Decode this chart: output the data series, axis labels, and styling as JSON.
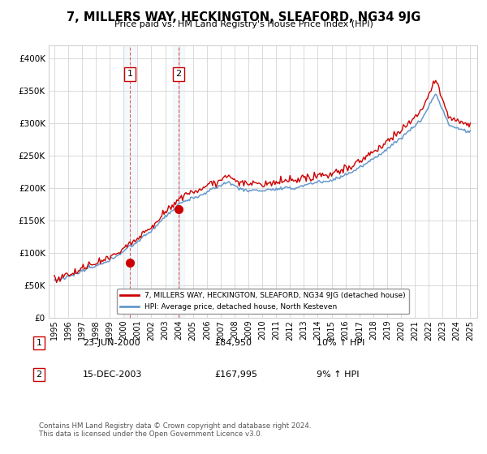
{
  "title": "7, MILLERS WAY, HECKINGTON, SLEAFORD, NG34 9JG",
  "subtitle": "Price paid vs. HM Land Registry's House Price Index (HPI)",
  "ylim": [
    0,
    420000
  ],
  "yticks": [
    0,
    50000,
    100000,
    150000,
    200000,
    250000,
    300000,
    350000,
    400000
  ],
  "ytick_labels": [
    "£0",
    "£50K",
    "£100K",
    "£150K",
    "£200K",
    "£250K",
    "£300K",
    "£350K",
    "£400K"
  ],
  "purchase_date_floats": [
    2000.47,
    2003.96
  ],
  "purchase_prices": [
    84950,
    167995
  ],
  "purchase_labels": [
    "1",
    "2"
  ],
  "legend_line1": "7, MILLERS WAY, HECKINGTON, SLEAFORD, NG34 9JG (detached house)",
  "legend_line2": "HPI: Average price, detached house, North Kesteven",
  "table_rows": [
    [
      "1",
      "23-JUN-2000",
      "£84,950",
      "10% ↑ HPI"
    ],
    [
      "2",
      "15-DEC-2003",
      "£167,995",
      "9% ↑ HPI"
    ]
  ],
  "footnote": "Contains HM Land Registry data © Crown copyright and database right 2024.\nThis data is licensed under the Open Government Licence v3.0.",
  "line_color_red": "#cc0000",
  "line_color_blue": "#6699cc",
  "bg_color": "#ffffff",
  "grid_color": "#cccccc",
  "highlight_fill": "#d8e8f5",
  "vline_color": "#cc0000",
  "xlim_left": 1994.6,
  "xlim_right": 2025.5,
  "xtick_start": 1995,
  "xtick_end": 2025
}
